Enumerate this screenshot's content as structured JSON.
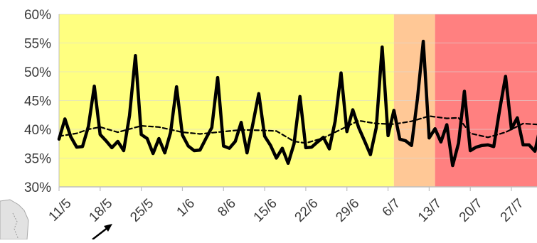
{
  "chart_data": {
    "type": "line",
    "title": "",
    "xlabel": "",
    "ylabel": "",
    "ylim": [
      30,
      60
    ],
    "y_tick_labels": [
      "30%",
      "35%",
      "40%",
      "45%",
      "50%",
      "55%",
      "60%"
    ],
    "y_tick_values": [
      30,
      35,
      40,
      45,
      50,
      55,
      60
    ],
    "x_tick_labels": [
      "11/5",
      "18/5",
      "25/5",
      "1/6",
      "8/6",
      "15/6",
      "22/6",
      "29/6",
      "6/7",
      "13/7",
      "20/7",
      "27/7"
    ],
    "x_tick_day_index": [
      0,
      7,
      14,
      21,
      28,
      35,
      42,
      49,
      56,
      63,
      70,
      77
    ],
    "grid": "horizontal",
    "legend": "none",
    "background_bands": [
      {
        "from_day": 0,
        "to_day": 57,
        "color": "#ffff80"
      },
      {
        "from_day": 57,
        "to_day": 64,
        "color": "#ffc896"
      },
      {
        "from_day": 64,
        "to_day": 81.4,
        "color": "#ff8080"
      }
    ],
    "series": [
      {
        "style": "solid",
        "color": "#000000",
        "x_day_index": [
          0,
          1,
          2,
          3,
          4,
          5,
          6,
          7,
          8,
          9,
          10,
          11,
          12,
          13,
          14,
          15,
          16,
          17,
          18,
          19,
          20,
          21,
          22,
          23,
          24,
          25,
          26,
          27,
          28,
          29,
          30,
          31,
          32,
          33,
          34,
          35,
          36,
          37,
          38,
          39,
          40,
          41,
          42,
          43,
          44,
          45,
          46,
          47,
          48,
          49,
          50,
          51,
          52,
          53,
          54,
          55,
          56,
          57,
          58,
          59,
          60,
          61,
          62,
          63,
          64,
          65,
          66,
          67,
          68,
          69,
          70,
          71,
          72,
          73,
          74,
          75,
          76,
          77,
          78,
          79,
          80,
          81,
          82
        ],
        "values": [
          38.3,
          41.8,
          38.7,
          36.9,
          37.0,
          40.5,
          47.5,
          39.1,
          38.0,
          36.8,
          37.9,
          36.3,
          42.4,
          52.8,
          39.1,
          38.4,
          35.8,
          38.4,
          35.9,
          39.5,
          47.4,
          39.0,
          37.1,
          36.3,
          36.4,
          38.4,
          40.3,
          49.0,
          37.1,
          36.7,
          37.9,
          41.2,
          35.9,
          41.0,
          46.2,
          38.8,
          37.2,
          35.0,
          36.7,
          34.1,
          37.5,
          45.7,
          36.8,
          36.9,
          37.8,
          38.6,
          36.6,
          41.4,
          49.8,
          39.6,
          43.4,
          40.3,
          38.0,
          35.6,
          40.3,
          54.3,
          38.9,
          43.3,
          38.3,
          38.0,
          37.2,
          45.3,
          55.3,
          38.5,
          40.1,
          37.8,
          40.8,
          33.7,
          37.6,
          46.6,
          36.3,
          36.9,
          37.2,
          37.3,
          37.0,
          43.4,
          49.2,
          40.1,
          42.0,
          37.3,
          37.3,
          36.2,
          40.8
        ]
      },
      {
        "style": "dashed",
        "color": "#000000",
        "x_day_index": [
          0,
          3,
          5,
          7,
          10,
          14,
          17,
          21,
          24,
          28,
          31,
          35,
          37,
          40,
          42,
          45,
          48,
          51,
          54,
          57,
          60,
          63,
          66,
          68,
          70,
          73,
          76,
          79,
          82
        ],
        "values": [
          38.8,
          39.3,
          40.0,
          40.4,
          39.5,
          40.6,
          40.4,
          39.5,
          39.2,
          39.6,
          39.9,
          39.8,
          39.7,
          37.9,
          37.6,
          38.5,
          40.0,
          41.5,
          41.0,
          40.9,
          41.4,
          42.3,
          41.9,
          42.0,
          39.3,
          38.6,
          39.5,
          41.0,
          40.8
        ]
      }
    ]
  },
  "colors": {
    "line": "#000000",
    "axis": "#bfbfbf",
    "tick_text": "#3a3a3a"
  }
}
